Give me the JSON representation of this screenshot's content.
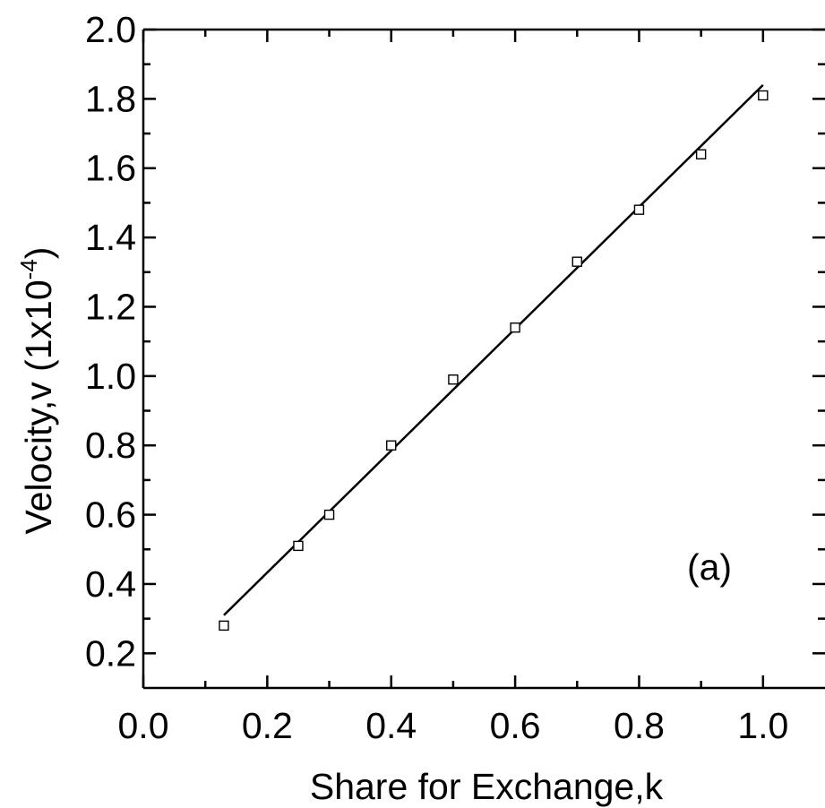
{
  "chart_data": {
    "type": "scatter",
    "xlabel": "Share for Exchange,k",
    "ylabel_main": "Velocity,v (1x10",
    "ylabel_sup": "-4",
    "ylabel_close": ")",
    "xlim": [
      0.0,
      1.1
    ],
    "ylim": [
      0.1,
      2.0
    ],
    "x_ticks": [
      "0.0",
      "0.2",
      "0.4",
      "0.6",
      "0.8",
      "1.0"
    ],
    "y_ticks": [
      "0.2",
      "0.4",
      "0.6",
      "0.8",
      "1.0",
      "1.2",
      "1.4",
      "1.6",
      "1.8",
      "2.0"
    ],
    "grid": false,
    "annotation": "(a)",
    "points": [
      {
        "x": 0.13,
        "y": 0.28
      },
      {
        "x": 0.25,
        "y": 0.51
      },
      {
        "x": 0.3,
        "y": 0.6
      },
      {
        "x": 0.4,
        "y": 0.8
      },
      {
        "x": 0.5,
        "y": 0.99
      },
      {
        "x": 0.6,
        "y": 1.14
      },
      {
        "x": 0.7,
        "y": 1.33
      },
      {
        "x": 0.8,
        "y": 1.48
      },
      {
        "x": 0.9,
        "y": 1.64
      },
      {
        "x": 1.0,
        "y": 1.81
      }
    ],
    "fit_line": {
      "x": [
        0.13,
        1.0
      ],
      "y": [
        0.31,
        1.84
      ]
    }
  }
}
